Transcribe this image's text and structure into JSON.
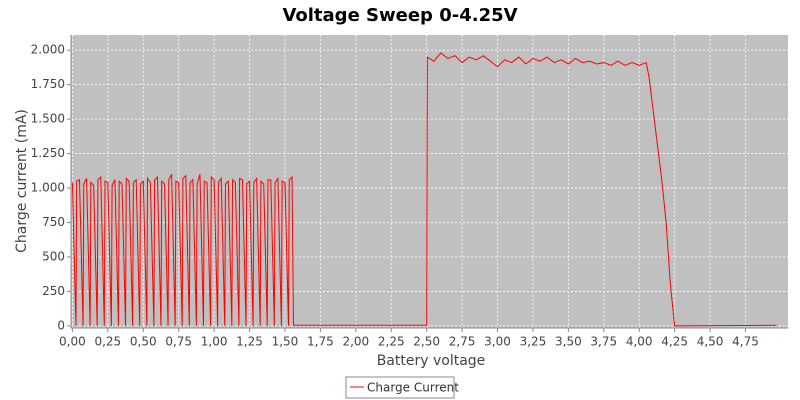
{
  "chart_data": {
    "type": "line",
    "title": "Voltage Sweep 0-4.25V",
    "x_label": "Battery voltage",
    "y_label": "Charge current (mA)",
    "xlim": [
      -0.01,
      5.05
    ],
    "ylim": [
      -15,
      2110
    ],
    "grid": true,
    "legend": "bottom",
    "xticks": [
      {
        "value": 0,
        "label": "0,00"
      },
      {
        "value": 0.25,
        "label": "0,25"
      },
      {
        "value": 0.5,
        "label": "0,50"
      },
      {
        "value": 0.75,
        "label": "0,75"
      },
      {
        "value": 1,
        "label": "1,00"
      },
      {
        "value": 1.25,
        "label": "1,25"
      },
      {
        "value": 1.5,
        "label": "1,50"
      },
      {
        "value": 1.75,
        "label": "1,75"
      },
      {
        "value": 2,
        "label": "2,00"
      },
      {
        "value": 2.25,
        "label": "2,25"
      },
      {
        "value": 2.5,
        "label": "2,50"
      },
      {
        "value": 2.75,
        "label": "2,75"
      },
      {
        "value": 3,
        "label": "3,00"
      },
      {
        "value": 3.25,
        "label": "3,25"
      },
      {
        "value": 3.5,
        "label": "3,50"
      },
      {
        "value": 3.75,
        "label": "3,75"
      },
      {
        "value": 4,
        "label": "4,00"
      },
      {
        "value": 4.25,
        "label": "4,25"
      },
      {
        "value": 4.5,
        "label": "4,50"
      },
      {
        "value": 4.75,
        "label": "4,75"
      }
    ],
    "yticks": [
      0,
      250,
      500,
      750,
      {
        "value": 1000,
        "label": "1.000"
      },
      {
        "value": 1250,
        "label": "1.250"
      },
      {
        "value": 1500,
        "label": "1.500"
      },
      {
        "value": 1750,
        "label": "1.750"
      },
      {
        "value": 2000,
        "label": "2.000"
      }
    ],
    "x": [
      0,
      0.025,
      0.03,
      0.05,
      0.075,
      0.08,
      0.1,
      0.125,
      0.13,
      0.15,
      0.175,
      0.18,
      0.2,
      0.225,
      0.23,
      0.25,
      0.275,
      0.28,
      0.3,
      0.325,
      0.33,
      0.35,
      0.375,
      0.38,
      0.4,
      0.425,
      0.43,
      0.45,
      0.475,
      0.48,
      0.5,
      0.525,
      0.53,
      0.55,
      0.575,
      0.58,
      0.6,
      0.625,
      0.63,
      0.65,
      0.675,
      0.68,
      0.7,
      0.725,
      0.73,
      0.75,
      0.775,
      0.78,
      0.8,
      0.825,
      0.83,
      0.85,
      0.875,
      0.88,
      0.9,
      0.925,
      0.93,
      0.95,
      0.975,
      0.98,
      1.0,
      1.025,
      1.03,
      1.05,
      1.075,
      1.08,
      1.1,
      1.125,
      1.13,
      1.15,
      1.175,
      1.18,
      1.2,
      1.225,
      1.23,
      1.25,
      1.275,
      1.28,
      1.3,
      1.325,
      1.33,
      1.35,
      1.375,
      1.38,
      1.4,
      1.425,
      1.43,
      1.45,
      1.475,
      1.48,
      1.5,
      1.525,
      1.53,
      1.55,
      1.56,
      2.5,
      2.505,
      2.55,
      2.6,
      2.65,
      2.7,
      2.75,
      2.8,
      2.85,
      2.9,
      2.95,
      3.0,
      3.05,
      3.1,
      3.15,
      3.2,
      3.25,
      3.3,
      3.35,
      3.4,
      3.45,
      3.5,
      3.55,
      3.6,
      3.65,
      3.7,
      3.75,
      3.8,
      3.85,
      3.9,
      3.95,
      4.0,
      4.05,
      4.07,
      4.1,
      4.13,
      4.16,
      4.19,
      4.22,
      4.24,
      4.25,
      4.97
    ],
    "series": [
      {
        "name": "Charge Current",
        "color": "#ff0000",
        "values": [
          1040,
          0,
          1050,
          1060,
          0,
          1030,
          1070,
          0,
          1040,
          1020,
          0,
          1060,
          1080,
          0,
          1050,
          1040,
          0,
          1020,
          1060,
          0,
          1050,
          1030,
          0,
          1070,
          1050,
          0,
          1040,
          1060,
          0,
          1030,
          1050,
          0,
          1070,
          1040,
          0,
          1060,
          1080,
          0,
          1050,
          1030,
          0,
          1060,
          1100,
          0,
          1050,
          1040,
          0,
          1070,
          1090,
          0,
          1040,
          1060,
          0,
          1030,
          1100,
          0,
          1050,
          1040,
          0,
          1080,
          1060,
          0,
          1040,
          1070,
          0,
          1030,
          1050,
          0,
          1060,
          1040,
          0,
          1070,
          1060,
          0,
          1030,
          1050,
          0,
          1040,
          1070,
          0,
          1050,
          1030,
          0,
          1060,
          1060,
          0,
          1040,
          1070,
          0,
          1050,
          1040,
          0,
          1060,
          1080,
          5,
          5,
          1950,
          1920,
          1980,
          1940,
          1960,
          1910,
          1950,
          1930,
          1960,
          1920,
          1880,
          1930,
          1910,
          1950,
          1900,
          1940,
          1920,
          1950,
          1910,
          1930,
          1900,
          1940,
          1910,
          1920,
          1900,
          1910,
          1890,
          1920,
          1890,
          1910,
          1890,
          1910,
          1800,
          1550,
          1300,
          1050,
          750,
          300,
          100,
          0,
          5
        ]
      }
    ]
  }
}
